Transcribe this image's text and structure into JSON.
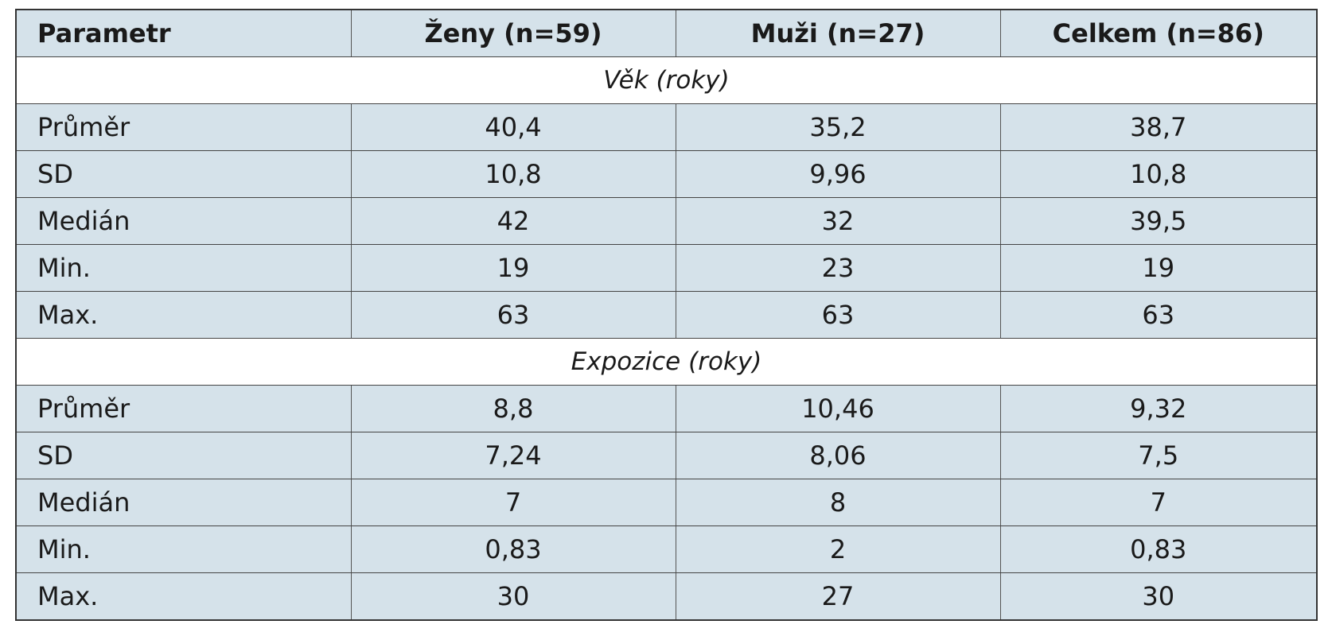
{
  "table": {
    "header": [
      "Parametr",
      "Ženy (n=59)",
      "Muži (n=27)",
      "Celkem (n=86)"
    ],
    "sections": [
      {
        "title": "Věk (roky)",
        "rows": [
          [
            "Průměr",
            "40,4",
            "35,2",
            "38,7"
          ],
          [
            "SD",
            "10,8",
            "9,96",
            "10,8"
          ],
          [
            "Medián",
            "42",
            "32",
            "39,5"
          ],
          [
            "Min.",
            "19",
            "23",
            "19"
          ],
          [
            "Max.",
            "63",
            "63",
            "63"
          ]
        ]
      },
      {
        "title": "Expozice (roky)",
        "rows": [
          [
            "Průměr",
            "8,8",
            "10,46",
            "9,32"
          ],
          [
            "SD",
            "7,24",
            "8,06",
            "7,5"
          ],
          [
            "Medián",
            "7",
            "8",
            "7"
          ],
          [
            "Min.",
            "0,83",
            "2",
            "0,83"
          ],
          [
            "Max.",
            "30",
            "27",
            "30"
          ]
        ]
      }
    ]
  }
}
